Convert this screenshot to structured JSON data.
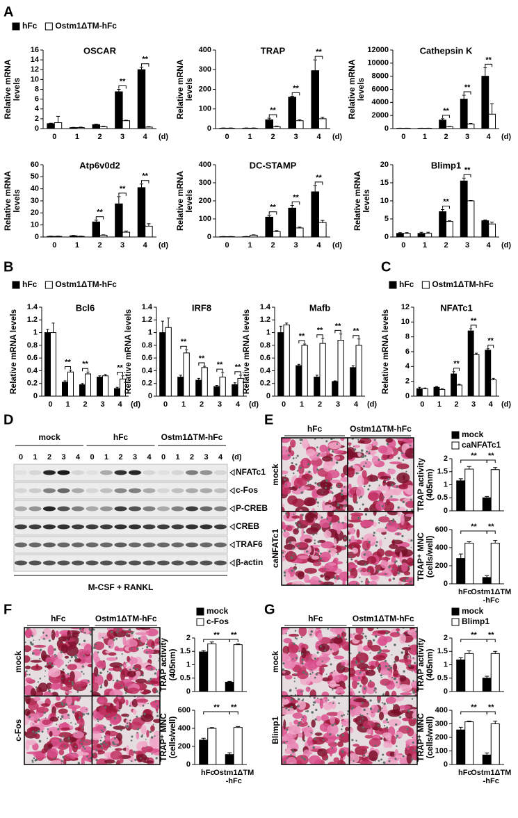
{
  "panel_labels": [
    "A",
    "B",
    "C",
    "D",
    "E",
    "F",
    "G"
  ],
  "legends": [
    {
      "items": [
        {
          "name": "hFc",
          "color": "#000000"
        },
        {
          "name": "Ostm1ΔTM-hFc",
          "color": "#ffffff"
        }
      ]
    },
    {
      "items": [
        {
          "name": "hFc",
          "color": "#000000"
        },
        {
          "name": "Ostm1ΔTM-hFc",
          "color": "#ffffff"
        }
      ]
    },
    {
      "items": [
        {
          "name": "hFc",
          "color": "#000000"
        },
        {
          "name": "Ostm1ΔTM-hFc",
          "color": "#ffffff"
        }
      ]
    },
    {
      "items": [
        {
          "name": "mock",
          "color": "#000000"
        },
        {
          "name": "caNFATc1",
          "color": "#ffffff"
        }
      ]
    },
    {
      "items": [
        {
          "name": "mock",
          "color": "#000000"
        },
        {
          "name": "c-Fos",
          "color": "#ffffff"
        }
      ]
    },
    {
      "items": [
        {
          "name": "mock",
          "color": "#000000"
        },
        {
          "name": "Blimp1",
          "color": "#ffffff"
        }
      ]
    }
  ],
  "chart_data": [
    {
      "type": "bar",
      "title": "OSCAR",
      "ylabel": [
        "Relative mRNA",
        "levels"
      ],
      "xlabel": "(d)",
      "categories": [
        "0",
        "1",
        "2",
        "3",
        "4"
      ],
      "series": [
        {
          "color": "#000000",
          "values": [
            1,
            0.2,
            0.8,
            7.5,
            12
          ],
          "errors": [
            0.1,
            0.05,
            0.1,
            0.5,
            0.5
          ]
        },
        {
          "color": "#ffffff",
          "values": [
            1.2,
            0.2,
            0.4,
            1.6,
            0.3
          ],
          "errors": [
            1.3,
            0.1,
            0.1,
            0.1,
            0.1
          ]
        }
      ],
      "ylim": [
        0,
        16
      ],
      "yticks": [
        0,
        2,
        4,
        6,
        8,
        10,
        12,
        14,
        16
      ],
      "significance": [
        null,
        null,
        null,
        "**",
        "**"
      ]
    },
    {
      "type": "bar",
      "title": "TRAP",
      "ylabel": [
        "Relative mRNA",
        "levels"
      ],
      "xlabel": "(d)",
      "categories": [
        "0",
        "1",
        "2",
        "3",
        "4"
      ],
      "series": [
        {
          "color": "#000000",
          "values": [
            2,
            2,
            45,
            160,
            295
          ],
          "errors": [
            1,
            1,
            8,
            5,
            55
          ]
        },
        {
          "color": "#ffffff",
          "values": [
            2,
            2,
            10,
            40,
            50
          ],
          "errors": [
            1,
            1,
            3,
            5,
            8
          ]
        }
      ],
      "ylim": [
        0,
        400
      ],
      "yticks": [
        0,
        100,
        200,
        300,
        400
      ],
      "significance": [
        null,
        null,
        "**",
        "**",
        "**"
      ]
    },
    {
      "type": "bar",
      "title": "Cathepsin K",
      "ylabel": [
        "Relative mRNA",
        "levels"
      ],
      "xlabel": "(d)",
      "categories": [
        "0",
        "1",
        "2",
        "3",
        "4"
      ],
      "series": [
        {
          "color": "#000000",
          "values": [
            50,
            50,
            1300,
            4500,
            8000
          ],
          "errors": [
            20,
            20,
            200,
            600,
            1300
          ]
        },
        {
          "color": "#ffffff",
          "values": [
            50,
            50,
            300,
            700,
            2200
          ],
          "errors": [
            20,
            20,
            50,
            100,
            1600
          ]
        }
      ],
      "ylim": [
        0,
        12000
      ],
      "yticks": [
        0,
        2000,
        4000,
        6000,
        8000,
        10000,
        12000
      ],
      "significance": [
        null,
        null,
        "**",
        "**",
        "**"
      ]
    },
    {
      "type": "bar",
      "title": "Atp6v0d2",
      "ylabel": [
        "Relative mRNA",
        "levels"
      ],
      "xlabel": "(d)",
      "categories": [
        "0",
        "1",
        "2",
        "3",
        "4"
      ],
      "series": [
        {
          "color": "#000000",
          "values": [
            0.5,
            1,
            12.5,
            27.5,
            41
          ],
          "errors": [
            0.2,
            0.3,
            1.5,
            6,
            3
          ]
        },
        {
          "color": "#ffffff",
          "values": [
            0.5,
            0.5,
            1.5,
            4,
            9
          ],
          "errors": [
            0.2,
            0.2,
            0.3,
            1,
            2
          ]
        }
      ],
      "ylim": [
        0,
        60
      ],
      "yticks": [
        0,
        10,
        20,
        30,
        40,
        50,
        60
      ],
      "significance": [
        null,
        null,
        "**",
        "**",
        "**"
      ]
    },
    {
      "type": "bar",
      "title": "DC-STAMP",
      "ylabel": [
        "Relative mRNA",
        "levels"
      ],
      "xlabel": "(d)",
      "categories": [
        "0",
        "1",
        "2",
        "3",
        "4"
      ],
      "series": [
        {
          "color": "#000000",
          "values": [
            2,
            2,
            110,
            160,
            250
          ],
          "errors": [
            1,
            1,
            10,
            15,
            35
          ]
        },
        {
          "color": "#ffffff",
          "values": [
            2,
            10,
            30,
            50,
            80
          ],
          "errors": [
            1,
            2,
            5,
            5,
            12
          ]
        }
      ],
      "ylim": [
        0,
        400
      ],
      "yticks": [
        0,
        100,
        200,
        300,
        400
      ],
      "significance": [
        null,
        null,
        "**",
        "**",
        "**"
      ]
    },
    {
      "type": "bar",
      "title": "Blimp1",
      "ylabel": [
        "Relative mRNA",
        "levels"
      ],
      "xlabel": "(d)",
      "categories": [
        "0",
        "1",
        "2",
        "3",
        "4"
      ],
      "series": [
        {
          "color": "#000000",
          "values": [
            1,
            1,
            7,
            15.5,
            4.5
          ],
          "errors": [
            0.2,
            0.3,
            0.6,
            0.8,
            0.2
          ]
        },
        {
          "color": "#ffffff",
          "values": [
            1,
            1,
            4.3,
            10,
            3.6
          ],
          "errors": [
            0.2,
            0.3,
            0.2,
            0.1,
            0.5
          ]
        }
      ],
      "ylim": [
        0,
        20
      ],
      "yticks": [
        0,
        5,
        10,
        15,
        20
      ],
      "significance": [
        null,
        null,
        "**",
        "**",
        null
      ]
    },
    {
      "type": "bar",
      "title": "Bcl6",
      "ylabel": [
        "Relative mRNA levels"
      ],
      "xlabel": "(d)",
      "categories": [
        "0",
        "1",
        "2",
        "3",
        "4"
      ],
      "series": [
        {
          "color": "#000000",
          "values": [
            1,
            0.22,
            0.18,
            0.3,
            0.12
          ],
          "errors": [
            0.05,
            0.02,
            0.02,
            0.02,
            0.02
          ]
        },
        {
          "color": "#ffffff",
          "values": [
            1,
            0.38,
            0.35,
            0.32,
            0.27
          ],
          "errors": [
            0.15,
            0.03,
            0.03,
            0.02,
            0.05
          ]
        }
      ],
      "ylim": [
        0,
        1.4
      ],
      "yticks": [
        0,
        0.2,
        0.4,
        0.6,
        0.8,
        1,
        1.2,
        1.4
      ],
      "significance": [
        null,
        "**",
        "**",
        null,
        "**"
      ]
    },
    {
      "type": "bar",
      "title": "IRF8",
      "ylabel": [
        "Relative mRNA levels"
      ],
      "xlabel": "(d)",
      "categories": [
        "0",
        "1",
        "2",
        "3",
        "4"
      ],
      "series": [
        {
          "color": "#000000",
          "values": [
            1,
            0.3,
            0.25,
            0.15,
            0.18
          ],
          "errors": [
            0.18,
            0.03,
            0.03,
            0.02,
            0.03
          ]
        },
        {
          "color": "#ffffff",
          "values": [
            1.08,
            0.68,
            0.45,
            0.3,
            0.28
          ],
          "errors": [
            0.15,
            0.05,
            0.02,
            0.07,
            0.05
          ]
        }
      ],
      "ylim": [
        0,
        1.4
      ],
      "yticks": [
        0,
        0.2,
        0.4,
        0.6,
        0.8,
        1,
        1.2,
        1.4
      ],
      "significance": [
        null,
        "**",
        "**",
        "**",
        "**"
      ]
    },
    {
      "type": "bar",
      "title": "Mafb",
      "ylabel": [
        "Relative mRNA levels"
      ],
      "xlabel": "(d)",
      "categories": [
        "0",
        "1",
        "2",
        "3",
        "4"
      ],
      "series": [
        {
          "color": "#000000",
          "values": [
            1,
            0.48,
            0.3,
            0.23,
            0.45
          ],
          "errors": [
            0.1,
            0.02,
            0.03,
            0.01,
            0.03
          ]
        },
        {
          "color": "#ffffff",
          "values": [
            1.12,
            0.8,
            0.83,
            0.88,
            0.8
          ],
          "errors": [
            0.03,
            0.02,
            0.08,
            0.1,
            0.1
          ]
        }
      ],
      "ylim": [
        0,
        1.4
      ],
      "yticks": [
        0,
        0.2,
        0.4,
        0.6,
        0.8,
        1,
        1.2,
        1.4
      ],
      "significance": [
        null,
        "**",
        "**",
        "**",
        "**"
      ]
    },
    {
      "type": "bar",
      "title": "NFATc1",
      "ylabel": [
        "Relative mRNA levels"
      ],
      "xlabel": "(d)",
      "categories": [
        "0",
        "1",
        "2",
        "3",
        "4"
      ],
      "series": [
        {
          "color": "#000000",
          "values": [
            1,
            1.2,
            3,
            8.8,
            6.2
          ],
          "errors": [
            0.2,
            0.1,
            0.3,
            0.3,
            0.2
          ]
        },
        {
          "color": "#ffffff",
          "values": [
            1,
            0.9,
            1.5,
            5.6,
            2.2
          ],
          "errors": [
            0.1,
            0.1,
            0.1,
            0.2,
            0.2
          ]
        }
      ],
      "ylim": [
        0,
        12
      ],
      "yticks": [
        0,
        2,
        4,
        6,
        8,
        10,
        12
      ],
      "significance": [
        null,
        null,
        "**",
        "**",
        "**"
      ]
    },
    {
      "type": "bar",
      "ylabel": [
        "TRAP activity",
        "(405nm)"
      ],
      "categories": [
        null,
        null
      ],
      "series": [
        {
          "color": "#000000",
          "values": [
            1.15,
            0.5
          ],
          "errors": [
            0.08,
            0.05
          ]
        },
        {
          "color": "#ffffff",
          "values": [
            1.6,
            1.58
          ],
          "errors": [
            0.1,
            0.08
          ]
        }
      ],
      "ylim": [
        0,
        2
      ],
      "yticks": [
        0,
        0.5,
        1,
        1.5,
        2
      ],
      "comparisons": [
        "**",
        "**"
      ]
    },
    {
      "type": "bar",
      "ylabel": [
        "TRAP⁺ MNC",
        "(cells/well)"
      ],
      "categories": [
        [
          "hFc"
        ],
        [
          "Ostm1ΔTM",
          "-hFc"
        ]
      ],
      "series": [
        {
          "color": "#000000",
          "values": [
            280,
            70
          ],
          "errors": [
            50,
            20
          ]
        },
        {
          "color": "#ffffff",
          "values": [
            450,
            450
          ],
          "errors": [
            15,
            30
          ]
        }
      ],
      "ylim": [
        0,
        600
      ],
      "yticks": [
        0,
        200,
        400,
        600
      ],
      "comparisons": [
        "**",
        "**"
      ]
    },
    {
      "type": "bar",
      "ylabel": [
        "TRAP activity",
        "(405nm)"
      ],
      "categories": [
        null,
        null
      ],
      "series": [
        {
          "color": "#000000",
          "values": [
            1.48,
            0.35
          ],
          "errors": [
            0.05,
            0.03
          ]
        },
        {
          "color": "#ffffff",
          "values": [
            1.78,
            1.75
          ],
          "errors": [
            0.07,
            0.03
          ]
        }
      ],
      "ylim": [
        0,
        2
      ],
      "yticks": [
        0,
        0.5,
        1,
        1.5,
        2
      ],
      "comparisons": [
        "**",
        "**"
      ]
    },
    {
      "type": "bar",
      "ylabel": [
        "TRAP⁺ MNC",
        "(cells/well)"
      ],
      "categories": [
        [
          "hFc"
        ],
        [
          "Ostm1ΔTM",
          "-hFc"
        ]
      ],
      "series": [
        {
          "color": "#000000",
          "values": [
            270,
            110
          ],
          "errors": [
            20,
            20
          ]
        },
        {
          "color": "#ffffff",
          "values": [
            400,
            410
          ],
          "errors": [
            10,
            10
          ]
        }
      ],
      "ylim": [
        0,
        600
      ],
      "yticks": [
        0,
        200,
        400,
        600
      ],
      "comparisons": [
        "**",
        "**"
      ]
    },
    {
      "type": "bar",
      "ylabel": [
        "TRAP activity",
        "(405nm)"
      ],
      "categories": [
        null,
        null
      ],
      "series": [
        {
          "color": "#000000",
          "values": [
            1.18,
            0.5
          ],
          "errors": [
            0.08,
            0.07
          ]
        },
        {
          "color": "#ffffff",
          "values": [
            1.42,
            1.42
          ],
          "errors": [
            0.1,
            0.08
          ]
        }
      ],
      "ylim": [
        0,
        2
      ],
      "yticks": [
        0,
        0.5,
        1,
        1.5,
        2
      ],
      "comparisons": [
        "**",
        "**"
      ]
    },
    {
      "type": "bar",
      "ylabel": [
        "TRAP⁺ MNC",
        "(cells/well)"
      ],
      "categories": [
        [
          "hFc"
        ],
        [
          "Ostm1ΔTM",
          "-hFc"
        ]
      ],
      "series": [
        {
          "color": "#000000",
          "values": [
            255,
            70
          ],
          "errors": [
            20,
            15
          ]
        },
        {
          "color": "#ffffff",
          "values": [
            315,
            300
          ],
          "errors": [
            5,
            20
          ]
        }
      ],
      "ylim": [
        0,
        400
      ],
      "yticks": [
        0,
        100,
        200,
        300,
        400
      ],
      "comparisons": [
        "**",
        "**"
      ]
    }
  ],
  "blot": {
    "groups": [
      {
        "label": "mock",
        "lanes": [
          "0",
          "1",
          "2",
          "3",
          "4"
        ]
      },
      {
        "label": "hFc",
        "lanes": [
          "0",
          "1",
          "2",
          "3",
          "4"
        ]
      },
      {
        "label": "Ostm1ΔTM-hFc",
        "lanes": [
          "0",
          "1",
          "2",
          "3",
          "4"
        ]
      }
    ],
    "unit": "(d)",
    "rows": [
      "NFATc1",
      "c-Fos",
      "P-CREB",
      "CREB",
      "TRAF6",
      "β-actin"
    ],
    "treatment": "M-CSF + RANKL"
  },
  "images": [
    {
      "columns": [
        "hFc",
        "Ostm1ΔTM-hFc"
      ],
      "rows": [
        "mock",
        "caNFATc1"
      ]
    },
    {
      "columns": [
        "hFc",
        "Ostm1ΔTM-hFc"
      ],
      "rows": [
        "mock",
        "c-Fos"
      ]
    },
    {
      "columns": [
        "hFc",
        "Ostm1ΔTM-hFc"
      ],
      "rows": [
        "mock",
        "Blimp1"
      ]
    }
  ]
}
